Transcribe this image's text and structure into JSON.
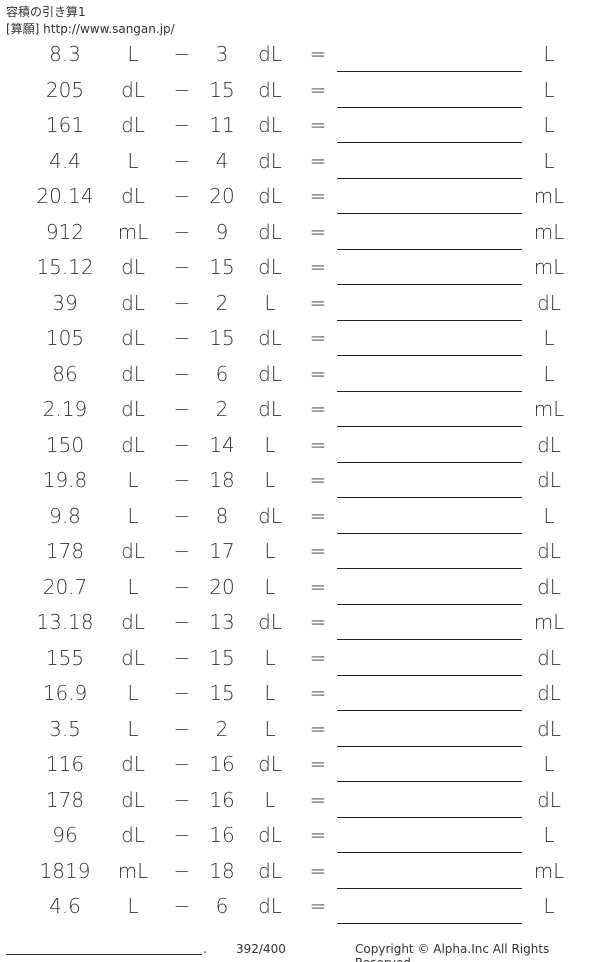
{
  "header": {
    "title": "容積の引き算1",
    "source": "[算願] http://www.sangan.jp/"
  },
  "operator": "−",
  "equals": "=",
  "problems": [
    {
      "a": "8.3",
      "ua": "L",
      "b": "3",
      "ub": "dL",
      "ur": "L"
    },
    {
      "a": "205",
      "ua": "dL",
      "b": "15",
      "ub": "dL",
      "ur": "L"
    },
    {
      "a": "161",
      "ua": "dL",
      "b": "11",
      "ub": "dL",
      "ur": "L"
    },
    {
      "a": "4.4",
      "ua": "L",
      "b": "4",
      "ub": "dL",
      "ur": "L"
    },
    {
      "a": "20.14",
      "ua": "dL",
      "b": "20",
      "ub": "dL",
      "ur": "mL"
    },
    {
      "a": "912",
      "ua": "mL",
      "b": "9",
      "ub": "dL",
      "ur": "mL"
    },
    {
      "a": "15.12",
      "ua": "dL",
      "b": "15",
      "ub": "dL",
      "ur": "mL"
    },
    {
      "a": "39",
      "ua": "dL",
      "b": "2",
      "ub": "L",
      "ur": "dL"
    },
    {
      "a": "105",
      "ua": "dL",
      "b": "15",
      "ub": "dL",
      "ur": "L"
    },
    {
      "a": "86",
      "ua": "dL",
      "b": "6",
      "ub": "dL",
      "ur": "L"
    },
    {
      "a": "2.19",
      "ua": "dL",
      "b": "2",
      "ub": "dL",
      "ur": "mL"
    },
    {
      "a": "150",
      "ua": "dL",
      "b": "14",
      "ub": "L",
      "ur": "dL"
    },
    {
      "a": "19.8",
      "ua": "L",
      "b": "18",
      "ub": "L",
      "ur": "dL"
    },
    {
      "a": "9.8",
      "ua": "L",
      "b": "8",
      "ub": "dL",
      "ur": "L"
    },
    {
      "a": "178",
      "ua": "dL",
      "b": "17",
      "ub": "L",
      "ur": "dL"
    },
    {
      "a": "20.7",
      "ua": "L",
      "b": "20",
      "ub": "L",
      "ur": "dL"
    },
    {
      "a": "13.18",
      "ua": "dL",
      "b": "13",
      "ub": "dL",
      "ur": "mL"
    },
    {
      "a": "155",
      "ua": "dL",
      "b": "15",
      "ub": "L",
      "ur": "dL"
    },
    {
      "a": "16.9",
      "ua": "L",
      "b": "15",
      "ub": "L",
      "ur": "dL"
    },
    {
      "a": "3.5",
      "ua": "L",
      "b": "2",
      "ub": "L",
      "ur": "dL"
    },
    {
      "a": "116",
      "ua": "dL",
      "b": "16",
      "ub": "dL",
      "ur": "L"
    },
    {
      "a": "178",
      "ua": "dL",
      "b": "16",
      "ub": "L",
      "ur": "dL"
    },
    {
      "a": "96",
      "ua": "dL",
      "b": "16",
      "ub": "dL",
      "ur": "L"
    },
    {
      "a": "1819",
      "ua": "mL",
      "b": "18",
      "ub": "dL",
      "ur": "mL"
    },
    {
      "a": "4.6",
      "ua": "L",
      "b": "6",
      "ub": "dL",
      "ur": "L"
    }
  ],
  "footer": {
    "dot": ".",
    "page": "392/400",
    "copyright": "Copyright © Alpha.Inc All Rights Reserved."
  }
}
